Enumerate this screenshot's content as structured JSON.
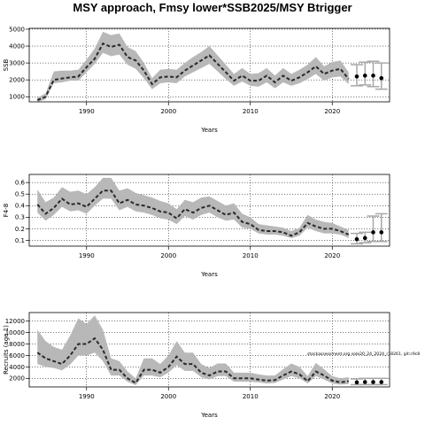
{
  "title": "MSY approach, Fmsy lower*SSB2025/MSY Btrigger",
  "note": "stockassessment.org sole20_24_2024_r18261, git:c9c8",
  "chart_data": [
    {
      "type": "line",
      "ylabel": "SSB",
      "xlabel": "Years",
      "xlim": [
        1983,
        2027
      ],
      "ylim": [
        700,
        5050
      ],
      "xticks": [
        1990,
        2000,
        2010,
        2020
      ],
      "yticks": [
        1000,
        2000,
        3000,
        4000,
        5000
      ],
      "grid": true,
      "historical": {
        "years": [
          1984,
          1985,
          1986,
          1987,
          1988,
          1989,
          1990,
          1991,
          1992,
          1993,
          1994,
          1995,
          1996,
          1997,
          1998,
          1999,
          2000,
          2001,
          2002,
          2003,
          2004,
          2005,
          2006,
          2007,
          2008,
          2009,
          2010,
          2011,
          2012,
          2013,
          2014,
          2015,
          2016,
          2017,
          2018,
          2019,
          2020,
          2021,
          2022
        ],
        "median": [
          800,
          1000,
          2000,
          2080,
          2150,
          2200,
          2750,
          3250,
          4150,
          3950,
          4080,
          3350,
          3150,
          2550,
          1750,
          2150,
          2200,
          2150,
          2550,
          2850,
          3150,
          3450,
          2950,
          2450,
          1950,
          2250,
          1950,
          1950,
          2250,
          1850,
          2250,
          1950,
          2150,
          2450,
          2800,
          2350,
          2550,
          2650,
          2050
        ],
        "low": [
          700,
          850,
          1800,
          1850,
          1950,
          1950,
          2450,
          2950,
          3600,
          3400,
          3500,
          2900,
          2650,
          2100,
          1450,
          1800,
          1850,
          1800,
          2200,
          2450,
          2700,
          2950,
          2500,
          2050,
          1650,
          1900,
          1650,
          1600,
          1850,
          1500,
          1850,
          1650,
          1800,
          2050,
          2350,
          1950,
          2150,
          2200,
          1750
        ],
        "high": [
          950,
          1200,
          2500,
          2550,
          2550,
          2600,
          3200,
          3850,
          4850,
          4650,
          4750,
          3950,
          3700,
          3000,
          2100,
          2600,
          2650,
          2600,
          3000,
          3350,
          3650,
          4000,
          3450,
          2900,
          2350,
          2700,
          2350,
          2400,
          2700,
          2250,
          2700,
          2350,
          2600,
          2900,
          3350,
          2800,
          3050,
          3150,
          2450
        ]
      },
      "forecast": {
        "years": [
          2023,
          2024,
          2025,
          2026
        ],
        "median": [
          2200,
          2250,
          2250,
          2100
        ],
        "low": [
          1650,
          1700,
          1600,
          1450
        ],
        "high": [
          2900,
          3050,
          3100,
          3000
        ]
      }
    },
    {
      "type": "line",
      "ylabel": "F4-8",
      "xlabel": "Years",
      "xlim": [
        1983,
        2027
      ],
      "ylim": [
        0.05,
        0.67
      ],
      "xticks": [
        1990,
        2000,
        2010,
        2020
      ],
      "yticks": [
        0.1,
        0.2,
        0.3,
        0.4,
        0.5,
        0.6
      ],
      "grid": true,
      "historical": {
        "years": [
          1984,
          1985,
          1986,
          1987,
          1988,
          1989,
          1990,
          1991,
          1992,
          1993,
          1994,
          1995,
          1996,
          1997,
          1998,
          1999,
          2000,
          2001,
          2002,
          2003,
          2004,
          2005,
          2006,
          2007,
          2008,
          2009,
          2010,
          2011,
          2012,
          2013,
          2014,
          2015,
          2016,
          2017,
          2018,
          2019,
          2020,
          2021,
          2022
        ],
        "median": [
          0.41,
          0.33,
          0.38,
          0.46,
          0.41,
          0.42,
          0.39,
          0.46,
          0.53,
          0.53,
          0.42,
          0.45,
          0.41,
          0.4,
          0.38,
          0.35,
          0.34,
          0.29,
          0.37,
          0.34,
          0.38,
          0.4,
          0.36,
          0.32,
          0.34,
          0.26,
          0.24,
          0.19,
          0.18,
          0.18,
          0.17,
          0.14,
          0.17,
          0.25,
          0.22,
          0.2,
          0.2,
          0.18,
          0.15
        ],
        "low": [
          0.34,
          0.27,
          0.32,
          0.39,
          0.35,
          0.36,
          0.33,
          0.4,
          0.46,
          0.46,
          0.36,
          0.39,
          0.35,
          0.34,
          0.32,
          0.29,
          0.28,
          0.24,
          0.31,
          0.28,
          0.32,
          0.34,
          0.3,
          0.27,
          0.28,
          0.21,
          0.2,
          0.16,
          0.15,
          0.15,
          0.14,
          0.12,
          0.14,
          0.21,
          0.18,
          0.16,
          0.16,
          0.15,
          0.12
        ],
        "high": [
          0.54,
          0.43,
          0.47,
          0.56,
          0.52,
          0.53,
          0.5,
          0.56,
          0.64,
          0.64,
          0.53,
          0.55,
          0.51,
          0.49,
          0.47,
          0.44,
          0.42,
          0.37,
          0.45,
          0.43,
          0.47,
          0.48,
          0.44,
          0.4,
          0.42,
          0.33,
          0.3,
          0.24,
          0.23,
          0.22,
          0.21,
          0.18,
          0.21,
          0.32,
          0.28,
          0.26,
          0.25,
          0.22,
          0.19
        ]
      },
      "forecast": {
        "years": [
          2023,
          2024,
          2025,
          2026
        ],
        "median": [
          0.11,
          0.12,
          0.17,
          0.17
        ],
        "low": [
          0.07,
          0.08,
          0.09,
          0.09
        ],
        "high": [
          0.16,
          0.17,
          0.31,
          0.33
        ]
      }
    },
    {
      "type": "line",
      "ylabel": "Recruits (age 1)",
      "xlabel": "Years",
      "xlim": [
        1983,
        2027
      ],
      "ylim": [
        500,
        13500
      ],
      "xticks": [
        1990,
        2000,
        2010,
        2020
      ],
      "yticks": [
        2000,
        4000,
        6000,
        8000,
        10000,
        12000
      ],
      "grid": true,
      "historical": {
        "years": [
          1984,
          1985,
          1986,
          1987,
          1988,
          1989,
          1990,
          1991,
          1992,
          1993,
          1994,
          1995,
          1996,
          1997,
          1998,
          1999,
          2000,
          2001,
          2002,
          2003,
          2004,
          2005,
          2006,
          2007,
          2008,
          2009,
          2010,
          2011,
          2012,
          2013,
          2014,
          2015,
          2016,
          2017,
          2018,
          2019,
          2020,
          2021,
          2022
        ],
        "median": [
          6500,
          5500,
          5000,
          4500,
          6000,
          8000,
          8000,
          9000,
          7000,
          3500,
          3500,
          2000,
          1200,
          3500,
          3500,
          3000,
          4000,
          5800,
          4500,
          4500,
          3000,
          2500,
          3200,
          3200,
          2000,
          2000,
          2000,
          1800,
          1600,
          1700,
          2500,
          3200,
          2700,
          1500,
          3200,
          2500,
          1600,
          1300,
          1500
        ],
        "low": [
          4500,
          4000,
          3800,
          3400,
          4400,
          6000,
          6000,
          6500,
          5000,
          2500,
          2500,
          1400,
          800,
          2500,
          2500,
          2200,
          3000,
          4300,
          3300,
          3300,
          2200,
          1800,
          2400,
          2400,
          1400,
          1400,
          1400,
          1300,
          1100,
          1200,
          1800,
          2400,
          2000,
          1100,
          2400,
          1800,
          1100,
          900,
          1000
        ],
        "high": [
          10500,
          8500,
          7500,
          7000,
          9500,
          12500,
          11500,
          13000,
          10500,
          5500,
          5000,
          3200,
          2000,
          5500,
          5500,
          4500,
          6000,
          8500,
          6500,
          6500,
          4500,
          3800,
          4600,
          4600,
          3000,
          3000,
          3000,
          2700,
          2500,
          2500,
          3600,
          4600,
          4000,
          2400,
          4700,
          3600,
          2400,
          2000,
          2200
        ]
      },
      "forecast": {
        "years": [
          2023,
          2024,
          2025,
          2026
        ],
        "median": [
          1300,
          1350,
          1350,
          1350
        ],
        "low": [
          900,
          900,
          900,
          900
        ],
        "high": [
          1900,
          2000,
          2000,
          2000
        ]
      }
    }
  ]
}
